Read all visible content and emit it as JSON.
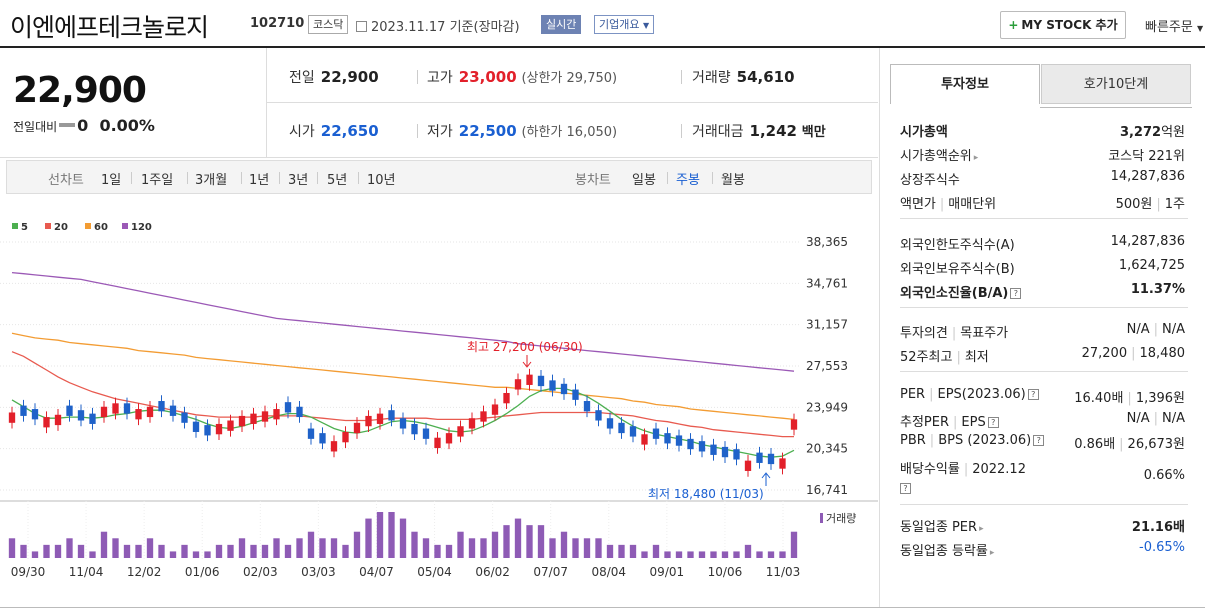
{
  "header": {
    "title": "이엔에프테크놀로지",
    "code": "102710",
    "market": "코스닥",
    "date": "2023.11.17",
    "date_suffix": "기준(장마감)",
    "realtime": "실시간",
    "company": "기업개요",
    "mystock": "MY STOCK 추가",
    "quick": "빠른주문"
  },
  "price": {
    "current": "22,900",
    "change_label": "전일대비",
    "change": "0",
    "change_pct": "0.00%",
    "prev_label": "전일",
    "prev": "22,900",
    "high_label": "고가",
    "high": "23,000",
    "upper_limit": "(상한가 29,750)",
    "volume_label": "거래량",
    "volume": "54,610",
    "open_label": "시가",
    "open": "22,650",
    "low_label": "저가",
    "low": "22,500",
    "lower_limit": "(하한가 16,050)",
    "amount_label": "거래대금",
    "amount": "1,242",
    "amount_unit": "백만"
  },
  "chart_toolbar": {
    "line_label": "선차트",
    "ranges": [
      "1일",
      "1주일",
      "3개월",
      "1년",
      "3년",
      "5년",
      "10년"
    ],
    "candle_label": "봉차트",
    "candle_types": [
      "일봉",
      "주봉",
      "월봉"
    ],
    "selected": "주봉"
  },
  "chart_data": {
    "type": "candlestick",
    "legend": [
      {
        "name": "5",
        "color": "#4caf50"
      },
      {
        "name": "20",
        "color": "#e85a4f"
      },
      {
        "name": "60",
        "color": "#f39c33"
      },
      {
        "name": "120",
        "color": "#9b59b6"
      }
    ],
    "y_ticks": [
      "38,365",
      "34,761",
      "31,157",
      "27,553",
      "23,949",
      "20,345",
      "16,741"
    ],
    "ylim": [
      16741,
      38365
    ],
    "x_ticks": [
      "09/30",
      "11/04",
      "12/02",
      "01/06",
      "02/03",
      "03/03",
      "04/07",
      "05/04",
      "06/02",
      "07/07",
      "08/04",
      "09/01",
      "10/06",
      "11/03"
    ],
    "high_annotation": "최고 27,200 (06/30)",
    "low_annotation": "최저 18,480 (11/03)",
    "volume_label": "거래량",
    "closes": [
      23500,
      23200,
      22900,
      23100,
      23300,
      23200,
      22800,
      22500,
      24000,
      24300,
      23400,
      23800,
      24000,
      23600,
      23200,
      22600,
      21800,
      21500,
      22500,
      22800,
      23200,
      23400,
      23600,
      23800,
      23500,
      23100,
      21200,
      20800,
      21000,
      21800,
      22600,
      23200,
      23400,
      22800,
      22100,
      21600,
      21200,
      21300,
      21700,
      22300,
      23000,
      23600,
      24200,
      25200,
      26400,
      26800,
      25800,
      25400,
      25100,
      24600,
      23600,
      22800,
      22100,
      21700,
      21400,
      21600,
      21200,
      20800,
      20600,
      20300,
      20100,
      19800,
      19600,
      19400,
      19300,
      19100,
      19000,
      19500,
      22900
    ],
    "bull": [
      1,
      0,
      0,
      1,
      1,
      0,
      0,
      0,
      1,
      1,
      0,
      1,
      1,
      0,
      0,
      0,
      0,
      0,
      1,
      1,
      1,
      1,
      1,
      1,
      0,
      0,
      0,
      0,
      1,
      1,
      1,
      1,
      1,
      0,
      0,
      0,
      0,
      1,
      1,
      1,
      1,
      1,
      1,
      1,
      1,
      1,
      0,
      0,
      0,
      0,
      0,
      0,
      0,
      0,
      0,
      1,
      0,
      0,
      0,
      0,
      0,
      0,
      0,
      0,
      1,
      0,
      0,
      1,
      1
    ],
    "ma5": [
      24600,
      24000,
      23400,
      23000,
      23000,
      23100,
      23100,
      23000,
      23100,
      23300,
      23400,
      23600,
      23700,
      23700,
      23500,
      23200,
      22900,
      22500,
      22200,
      22100,
      22300,
      22600,
      22900,
      23200,
      23400,
      23400,
      23100,
      22600,
      22100,
      21800,
      21700,
      21900,
      22300,
      22700,
      22800,
      22700,
      22500,
      22200,
      21900,
      21800,
      21900,
      22300,
      22800,
      23400,
      24100,
      24900,
      25400,
      25600,
      25600,
      25300,
      24900,
      24300,
      23600,
      22900,
      22300,
      21900,
      21600,
      21400,
      21200,
      21000,
      20700,
      20500,
      20300,
      20100,
      19900,
      19700,
      19600,
      19700,
      20200
    ],
    "ma20": [
      28800,
      28400,
      27800,
      27200,
      26600,
      26100,
      25700,
      25300,
      25000,
      24700,
      24500,
      24300,
      24100,
      23900,
      23700,
      23500,
      23300,
      23200,
      23100,
      23100,
      23100,
      23100,
      23200,
      23200,
      23200,
      23200,
      23100,
      23000,
      22900,
      22800,
      22800,
      22800,
      22900,
      23000,
      23000,
      23000,
      23000,
      22900,
      22900,
      22900,
      22900,
      23000,
      23100,
      23200,
      23300,
      23400,
      23500,
      23500,
      23500,
      23500,
      23500,
      23500,
      23400,
      23300,
      23200,
      23000,
      22800,
      22700,
      22500,
      22300,
      22200,
      22000,
      21900,
      21800,
      21700,
      21600,
      21500,
      21400,
      21400
    ],
    "ma60": [
      30400,
      30200,
      30000,
      29900,
      29800,
      29600,
      29500,
      29400,
      29300,
      29200,
      29100,
      28900,
      28800,
      28700,
      28600,
      28500,
      28300,
      28200,
      28100,
      28000,
      27900,
      27800,
      27700,
      27600,
      27500,
      27400,
      27300,
      27200,
      27100,
      27000,
      26900,
      26800,
      26700,
      26600,
      26500,
      26400,
      26300,
      26200,
      26100,
      26000,
      25900,
      25800,
      25700,
      25700,
      25600,
      25500,
      25400,
      25300,
      25200,
      25100,
      25000,
      24900,
      24800,
      24700,
      24500,
      24400,
      24200,
      24100,
      24000,
      23800,
      23700,
      23600,
      23500,
      23400,
      23300,
      23200,
      23100,
      23000,
      22900
    ],
    "ma120": [
      35700,
      35600,
      35500,
      35400,
      35300,
      35200,
      35100,
      34900,
      34700,
      34500,
      34300,
      34100,
      33900,
      33700,
      33500,
      33300,
      33100,
      32900,
      32700,
      32500,
      32300,
      32100,
      31900,
      31700,
      31600,
      31500,
      31400,
      31300,
      31200,
      31100,
      31000,
      30900,
      30800,
      30700,
      30600,
      30500,
      30400,
      30300,
      30200,
      30100,
      30000,
      29900,
      29800,
      29700,
      29500,
      29400,
      29300,
      29200,
      29100,
      29000,
      28900,
      28800,
      28700,
      28600,
      28500,
      28400,
      28300,
      28200,
      28100,
      28000,
      27900,
      27800,
      27700,
      27600,
      27500,
      27400,
      27300,
      27200,
      27100
    ],
    "volume": [
      3,
      2,
      1,
      2,
      2,
      3,
      2,
      1,
      4,
      3,
      2,
      2,
      3,
      2,
      1,
      2,
      1,
      1,
      2,
      2,
      3,
      2,
      2,
      3,
      2,
      3,
      4,
      3,
      3,
      2,
      4,
      6,
      7,
      7,
      6,
      4,
      3,
      2,
      2,
      4,
      3,
      3,
      4,
      5,
      6,
      5,
      5,
      3,
      4,
      3,
      3,
      3,
      2,
      2,
      2,
      1,
      2,
      1,
      1,
      1,
      1,
      1,
      1,
      1,
      2,
      1,
      1,
      1,
      4
    ]
  },
  "right": {
    "tab_info": "투자정보",
    "tab_hoga": "호가10단계",
    "mcap_label": "시가총액",
    "mcap": "3,272",
    "mcap_unit": "억원",
    "rank_label": "시가총액순위",
    "rank": "코스닥 221위",
    "shares_label": "상장주식수",
    "shares": "14,287,836",
    "par_label": "액면가",
    "unit_label": "매매단위",
    "par": "500원",
    "unit": "1주",
    "foreign_limit_label": "외국인한도주식수(A)",
    "foreign_limit": "14,287,836",
    "foreign_hold_label": "외국인보유주식수(B)",
    "foreign_hold": "1,624,725",
    "foreign_rate_label": "외국인소진율(B/A)",
    "foreign_rate": "11.37%",
    "opinion_label": "투자의견",
    "target_label": "목표주가",
    "opinion": "N/A",
    "target": "N/A",
    "w52_label": "52주최고",
    "w52_low_label": "최저",
    "w52_high": "27,200",
    "w52_low": "18,480",
    "per_label": "PER",
    "eps_label": "EPS(2023.06)",
    "per": "16.40배",
    "eps": "1,396원",
    "eper_label": "추정PER",
    "eeps_label": "EPS",
    "eper": "N/A",
    "eeps": "N/A",
    "pbr_label": "PBR",
    "bps_label": "BPS (2023.06)",
    "pbr": "0.86배",
    "bps": "26,673원",
    "div_label": "배당수익률",
    "div_year": "2022.12",
    "div": "0.66%",
    "ind_per_label": "동일업종 PER",
    "ind_per": "21.16배",
    "ind_rate_label": "동일업종 등락률",
    "ind_rate": "-0.65%"
  }
}
